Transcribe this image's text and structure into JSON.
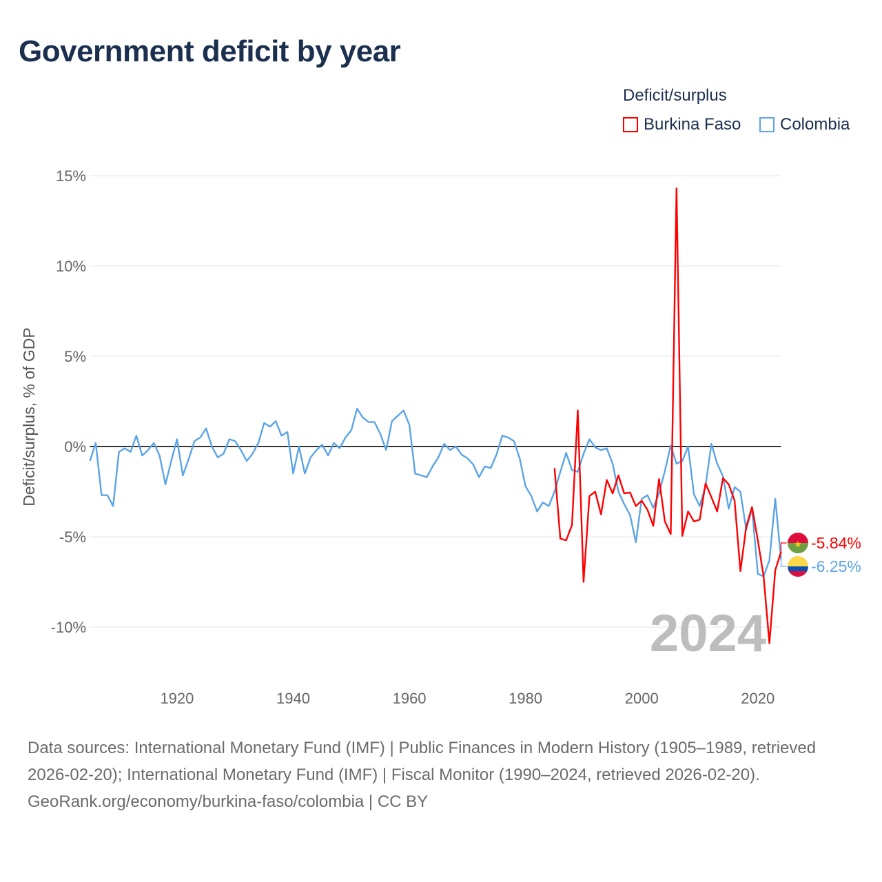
{
  "title": "Government deficit by year",
  "legend": {
    "title": "Deficit/surplus",
    "items": [
      {
        "label": "Burkina Faso",
        "color": "#ff0000"
      },
      {
        "label": "Colombia",
        "color": "#5ba4e6"
      }
    ]
  },
  "watermark_year": "2024",
  "end_labels": {
    "burkina": "-5.84%",
    "colombia": "-6.25%"
  },
  "footer": {
    "sources": "Data sources: International Monetary Fund (IMF) | Public Finances in Modern History (1905–1989, retrieved 2026-02-20); International Monetary Fund (IMF) | Fiscal Monitor (1990–2024, retrieved 2026-02-20).",
    "credit": "GeoRank.org/economy/burkina-faso/colombia | CC BY"
  },
  "chart_data": {
    "type": "line",
    "title": "Government deficit by year",
    "xlabel": "",
    "ylabel": "Deficit/surplus, % of GDP",
    "xlim": [
      1905,
      2024
    ],
    "ylim": [
      -12.5,
      15
    ],
    "x_ticks": [
      "1920",
      "1940",
      "1960",
      "1980",
      "2000",
      "2020"
    ],
    "x_tick_values": [
      1920,
      1940,
      1960,
      1980,
      2000,
      2020
    ],
    "y_ticks": [
      "15%",
      "10%",
      "5%",
      "0%",
      "-5%",
      "-10%"
    ],
    "y_tick_values": [
      15,
      10,
      5,
      0,
      -5,
      -10
    ],
    "grid": true,
    "legend_position": "top-right",
    "series": [
      {
        "name": "Burkina Faso",
        "color": "#ff0000",
        "start_year": 1985,
        "values": [
          -1.2,
          -5.1,
          -5.2,
          -4.35,
          2.0,
          -7.5,
          -2.75,
          -2.5,
          -3.75,
          -1.85,
          -2.6,
          -1.6,
          -2.6,
          -2.55,
          -3.3,
          -3.0,
          -3.5,
          -4.4,
          -1.8,
          -4.15,
          -4.85,
          14.3,
          -4.95,
          -3.6,
          -4.15,
          -4.05,
          -2.05,
          -2.8,
          -3.6,
          -1.75,
          -2.1,
          -3.0,
          -6.9,
          -4.45,
          -3.35,
          -5.2,
          -7.2,
          -10.9,
          -6.85,
          -5.84
        ]
      },
      {
        "name": "Colombia",
        "color": "#5ba4e6",
        "start_year": 1905,
        "values": [
          -0.8,
          0.2,
          -2.7,
          -2.7,
          -3.3,
          -0.3,
          -0.1,
          -0.3,
          0.6,
          -0.5,
          -0.2,
          0.2,
          -0.5,
          -2.1,
          -0.8,
          0.4,
          -1.6,
          -0.7,
          0.3,
          0.5,
          1.0,
          0.0,
          -0.6,
          -0.4,
          0.4,
          0.3,
          -0.2,
          -0.8,
          -0.4,
          0.2,
          1.3,
          1.1,
          1.4,
          0.6,
          0.8,
          -1.5,
          0.0,
          -1.5,
          -0.6,
          -0.2,
          0.1,
          -0.5,
          0.2,
          -0.1,
          0.5,
          0.9,
          2.1,
          1.6,
          1.35,
          1.35,
          0.7,
          -0.2,
          1.4,
          1.7,
          2.0,
          1.2,
          -1.5,
          -1.6,
          -1.7,
          -1.1,
          -0.6,
          0.15,
          -0.2,
          0.0,
          -0.45,
          -0.65,
          -1.0,
          -1.7,
          -1.1,
          -1.2,
          -0.45,
          0.6,
          0.5,
          0.3,
          -0.65,
          -2.2,
          -2.75,
          -3.6,
          -3.1,
          -3.3,
          -2.5,
          -1.4,
          -0.35,
          -1.3,
          -1.4,
          -0.4,
          0.4,
          -0.05,
          -0.2,
          -0.1,
          -0.95,
          -2.5,
          -3.2,
          -3.8,
          -5.3,
          -2.9,
          -2.7,
          -3.4,
          -2.6,
          -1.35,
          0.05,
          -0.95,
          -0.8,
          0.0,
          -2.65,
          -3.3,
          -2.2,
          0.15,
          -0.95,
          -1.65,
          -3.45,
          -2.25,
          -2.5,
          -4.6,
          -3.45,
          -7.05,
          -7.2,
          -6.3,
          -2.9,
          -6.25
        ]
      }
    ]
  }
}
